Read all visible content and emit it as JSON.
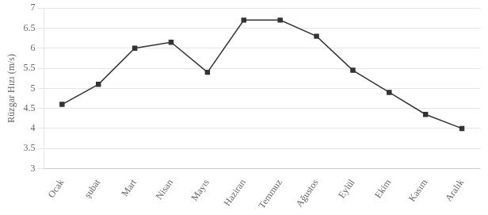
{
  "chart_data": {
    "type": "line",
    "categories": [
      "Ocak",
      "şubat",
      "Mart",
      "Nisan",
      "Mayıs",
      "Haziran",
      "Temmuz",
      "Ağustos",
      "Eylül",
      "Ekim",
      "Kasım",
      "Aralık"
    ],
    "values": [
      4.6,
      5.1,
      6.0,
      6.15,
      5.4,
      6.7,
      6.7,
      6.3,
      5.45,
      4.9,
      4.35,
      4.0
    ],
    "ylabel": "Rüzgar Hızı (m/s)",
    "ylim": [
      3.0,
      7.0
    ],
    "yticks": [
      3,
      3.5,
      4,
      4.5,
      5,
      5.5,
      6,
      6.5,
      7
    ],
    "color": "#333333",
    "marker": "square",
    "grid": true
  }
}
